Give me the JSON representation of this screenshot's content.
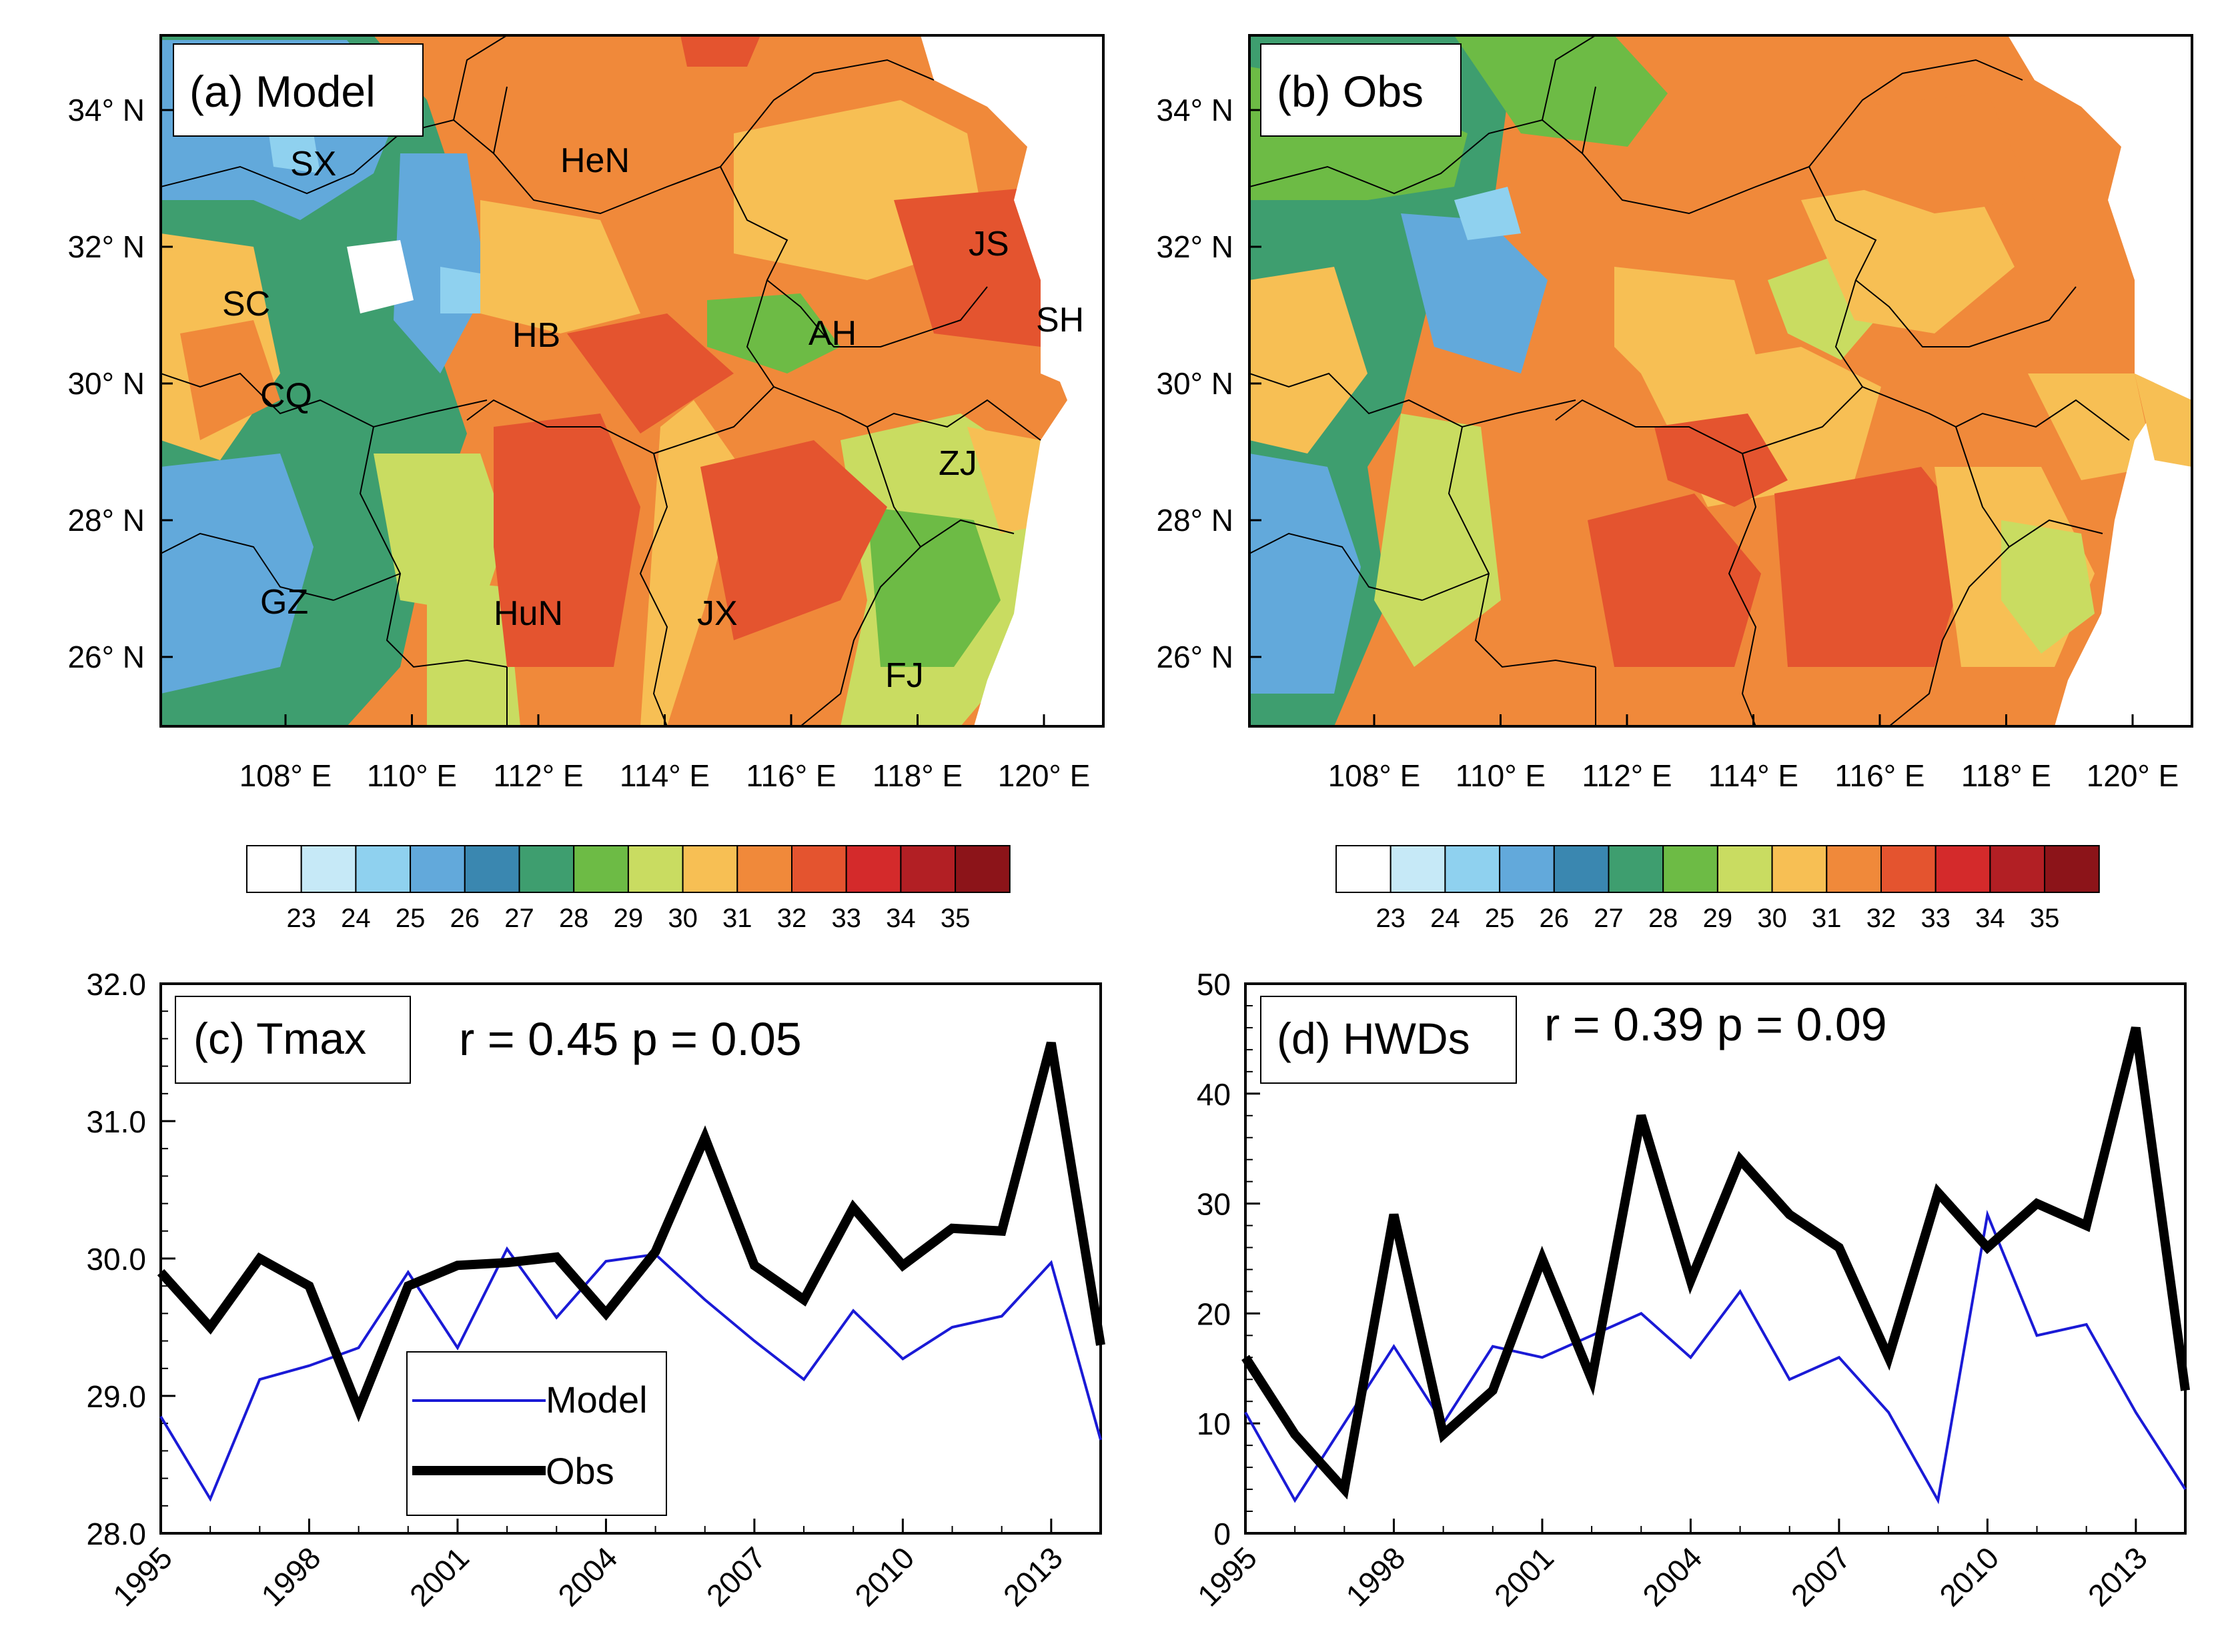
{
  "maps": [
    {
      "label": "(a) Model",
      "provinces": [
        "SX",
        "HeN",
        "JS",
        "SC",
        "HB",
        "AH",
        "SH",
        "CQ",
        "ZJ",
        "GZ",
        "HuN",
        "JX",
        "FJ"
      ]
    },
    {
      "label": "(b) Obs",
      "provinces": []
    }
  ],
  "lat_labels": [
    "34° N",
    "32° N",
    "30° N",
    "28° N",
    "26° N"
  ],
  "lon_labels": [
    "108° E",
    "110° E",
    "112° E",
    "114° E",
    "116° E",
    "118° E",
    "120° E"
  ],
  "colorbar": {
    "labels": [
      "23",
      "24",
      "25",
      "26",
      "27",
      "28",
      "29",
      "30",
      "31",
      "32",
      "33",
      "34",
      "35"
    ],
    "colors": [
      "#ffffff",
      "#c6e9f7",
      "#8fd1ef",
      "#62a9db",
      "#3a87b0",
      "#3e9e6f",
      "#6dbb45",
      "#c9dc61",
      "#f7bf54",
      "#f0893a",
      "#e4542f",
      "#d42a2b",
      "#b21f24",
      "#8c1419"
    ]
  },
  "colors": {
    "model": "#1a1ad6",
    "obs": "#000000"
  },
  "chart_data": [
    {
      "type": "line",
      "title": "(c) Tmax",
      "stat": "r = 0.45  p = 0.05",
      "x": [
        1995,
        1996,
        1997,
        1998,
        1999,
        2000,
        2001,
        2002,
        2003,
        2004,
        2005,
        2006,
        2007,
        2008,
        2009,
        2010,
        2011,
        2012,
        2013,
        2014
      ],
      "series": [
        {
          "name": "Model",
          "values": [
            28.85,
            28.25,
            29.12,
            29.22,
            29.35,
            29.9,
            29.35,
            30.07,
            29.57,
            29.98,
            30.03,
            29.7,
            29.4,
            29.12,
            29.62,
            29.27,
            29.5,
            29.58,
            29.97,
            28.68
          ]
        },
        {
          "name": "Obs",
          "values": [
            29.9,
            29.5,
            30.0,
            29.8,
            28.9,
            29.8,
            29.95,
            29.97,
            30.01,
            29.6,
            30.05,
            30.88,
            29.95,
            29.7,
            30.37,
            29.95,
            30.22,
            30.2,
            31.57,
            29.37
          ]
        }
      ],
      "ylim": [
        28.0,
        32.0
      ],
      "yticks": [
        "28.0",
        "29.0",
        "30.0",
        "31.0",
        "32.0"
      ],
      "xticks": [
        "1995",
        "1998",
        "2001",
        "2004",
        "2007",
        "2010",
        "2013"
      ],
      "legend": [
        "Model",
        "Obs"
      ]
    },
    {
      "type": "line",
      "title": "(d) HWDs",
      "stat": "r = 0.39  p = 0.09",
      "x": [
        1995,
        1996,
        1997,
        1998,
        1999,
        2000,
        2001,
        2002,
        2003,
        2004,
        2005,
        2006,
        2007,
        2008,
        2009,
        2010,
        2011,
        2012,
        2013,
        2014
      ],
      "series": [
        {
          "name": "Model",
          "values": [
            11,
            3,
            10,
            17,
            10,
            17,
            16,
            18,
            20,
            16,
            22,
            14,
            16,
            11,
            3,
            29,
            18,
            19,
            11,
            4
          ]
        },
        {
          "name": "Obs",
          "values": [
            16,
            9,
            4,
            29,
            9,
            13,
            25,
            14,
            38,
            23,
            34,
            29,
            26,
            16,
            31,
            26,
            30,
            28,
            46,
            13
          ]
        }
      ],
      "ylim": [
        0,
        50
      ],
      "yticks": [
        "0",
        "10",
        "20",
        "30",
        "40",
        "50"
      ],
      "xticks": [
        "1995",
        "1998",
        "2001",
        "2004",
        "2007",
        "2010",
        "2013"
      ]
    }
  ]
}
